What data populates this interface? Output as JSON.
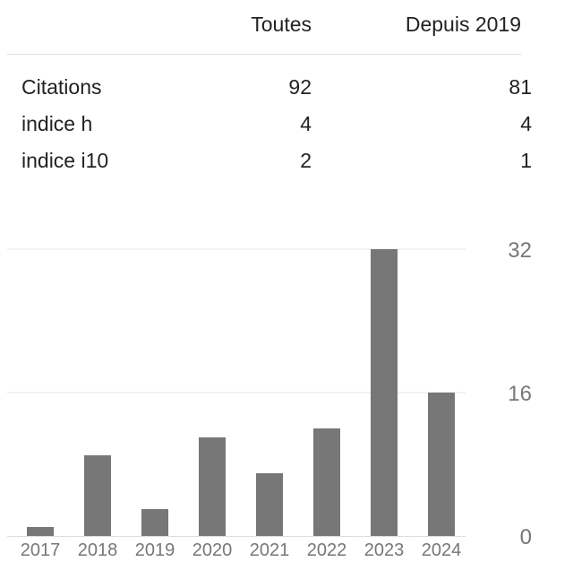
{
  "stats": {
    "headers": {
      "all": "Toutes",
      "since": "Depuis 2019"
    },
    "rows": [
      {
        "label": "Citations",
        "all": "92",
        "since": "81"
      },
      {
        "label": "indice h",
        "all": "4",
        "since": "4"
      },
      {
        "label": "indice i10",
        "all": "2",
        "since": "1"
      }
    ]
  },
  "chart_data": {
    "type": "bar",
    "categories": [
      "2017",
      "2018",
      "2019",
      "2020",
      "2021",
      "2022",
      "2023",
      "2024"
    ],
    "values": [
      1,
      9,
      3,
      11,
      7,
      12,
      32,
      16
    ],
    "yticks": [
      "0",
      "16",
      "32"
    ],
    "ylim": [
      0,
      32
    ],
    "grid": true,
    "bar_color": "#777777",
    "grid_color": "#e5e5e5",
    "tick_color": "#777777"
  }
}
